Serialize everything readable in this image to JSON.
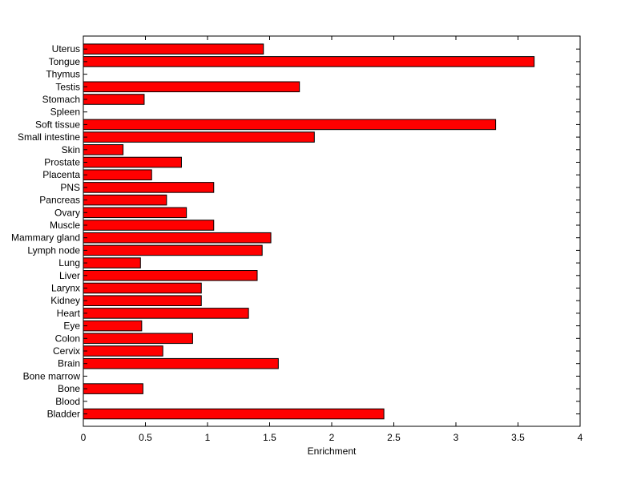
{
  "colors": {
    "bar_fill": "#ff0000",
    "bar_stroke": "#000000",
    "axes": "#000000",
    "background": "#ffffff"
  },
  "chart_data": {
    "type": "bar",
    "orientation": "horizontal",
    "title": "",
    "xlabel": "Enrichment",
    "ylabel": "",
    "xlim": [
      0,
      4
    ],
    "x_ticks": [
      "0",
      "0.5",
      "1",
      "1.5",
      "2",
      "2.5",
      "3",
      "3.5",
      "4"
    ],
    "grid": false,
    "legend": "none",
    "categories": [
      "Bladder",
      "Blood",
      "Bone",
      "Bone marrow",
      "Brain",
      "Cervix",
      "Colon",
      "Eye",
      "Heart",
      "Kidney",
      "Larynx",
      "Liver",
      "Lung",
      "Lymph node",
      "Mammary gland",
      "Muscle",
      "Ovary",
      "Pancreas",
      "PNS",
      "Placenta",
      "Prostate",
      "Skin",
      "Small intestine",
      "Soft tissue",
      "Spleen",
      "Stomach",
      "Testis",
      "Thymus",
      "Tongue",
      "Uterus"
    ],
    "values": [
      2.42,
      0,
      0.48,
      0,
      1.57,
      0.64,
      0.88,
      0.47,
      1.33,
      0.95,
      0.95,
      1.4,
      0.46,
      1.44,
      1.51,
      1.05,
      0.83,
      0.67,
      1.05,
      0.55,
      0.79,
      0.32,
      1.86,
      3.32,
      0,
      0.49,
      1.74,
      0,
      3.63,
      1.45
    ]
  }
}
